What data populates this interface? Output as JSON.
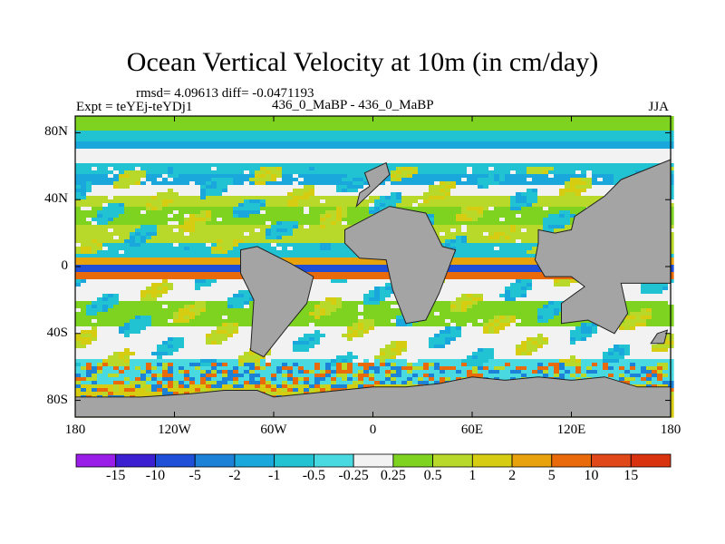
{
  "chart_data": {
    "type": "heatmap",
    "title": "Ocean Vertical Velocity at 10m (in cm/day)",
    "stats": "rmsd= 4.09613 diff= -0.0471193",
    "experiment": "Expt = teYEj-teYDj1",
    "case_label": "436_0_MaBP - 436_0_MaBP",
    "season": "JJA",
    "x_ticks": [
      "180",
      "120W",
      "60W",
      "0",
      "60E",
      "120E",
      "180"
    ],
    "x_tick_values": [
      -180,
      -120,
      -60,
      0,
      60,
      120,
      180
    ],
    "y_ticks": [
      "80N",
      "40N",
      "0",
      "40S",
      "80S"
    ],
    "y_tick_values": [
      80,
      40,
      0,
      -40,
      -80
    ],
    "xlim": [
      -180,
      180
    ],
    "ylim": [
      -90,
      90
    ],
    "colorbar": {
      "levels": [
        "-15",
        "-10",
        "-5",
        "-2",
        "-1",
        "-0.5",
        "-0.25",
        "0.25",
        "0.5",
        "1",
        "2",
        "5",
        "10",
        "15"
      ],
      "colors": [
        "#9a1ee8",
        "#3b1fd1",
        "#1f4fd6",
        "#1b82d8",
        "#1aa8dc",
        "#21c3d3",
        "#49d9e0",
        "#f2f2f2",
        "#7ed321",
        "#b8d82a",
        "#d6cc12",
        "#e8a20b",
        "#e86a0b",
        "#e0481a",
        "#d9320f"
      ]
    },
    "land_color": "#a4a4a4"
  }
}
